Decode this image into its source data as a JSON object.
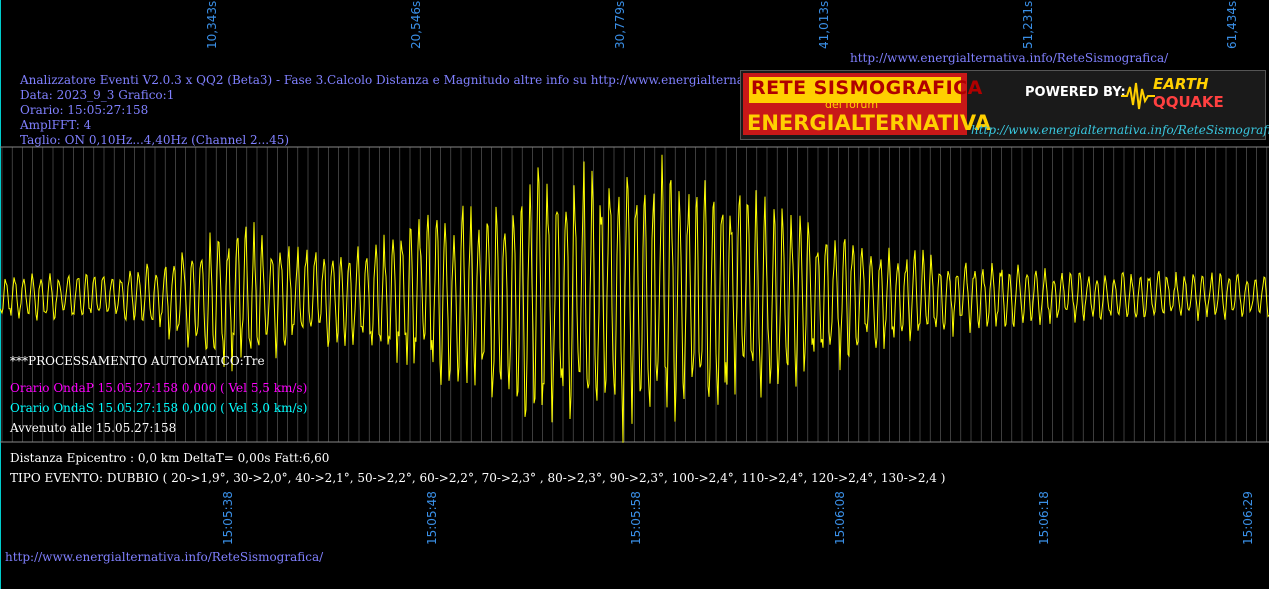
{
  "top_url": "http://www.energialternativa.info/ReteSismografica/",
  "bottom_url": "http://www.energialternativa.info/ReteSismografica/",
  "info": {
    "line1": "Analizzatore Eventi V2.0.3 x QQ2 (Beta3) - Fase 3.Calcolo Distanza e Magnitudo altre info su http://www.energialternativa.info/ReteSism",
    "line2": "Data: 2023_9_3 Grafico:1",
    "line3": "Orario: 15:05:27:158",
    "line4": "AmplFFT: 4",
    "line5": "Taglio: ON 0,10Hz...4,40Hz       (Channel 2...45)"
  },
  "logo": {
    "title": "RETE SISMOGRAFICA",
    "subtitle": "del forum",
    "name": "ENERGIALTERNATIVA",
    "powered": "POWERED BY:",
    "brand_top": "EARTH",
    "brand_bottom": "QQUAKE",
    "url": "http://www.energialternativa.info/ReteSismografica"
  },
  "processing": {
    "title": "***PROCESSAMENTO AUTOMATICO:Tre",
    "onda_p": "Orario OndaP 15.05.27:158  0,000 ( Vel 5,5 km/s)",
    "onda_s": "Orario OndaS 15.05.27:158  0,000 ( Vel 3,0 km/s)",
    "avvenuto": "Avvenuto alle 15.05.27:158",
    "distanza": "Distanza Epicentro : 0,0 km DeltaT= 0,00s  Fatt:6,60",
    "tipo": "TIPO EVENTO: DUBBIO ( 20->1,9°, 30->2,0°, 40->2,1°, 50->2,2°, 60->2,2°, 70->2,3° , 80->2,3°, 90->2,3°, 100->2,4°, 110->2,4°, 120->2,4°, 130->2,4 )"
  },
  "top_ticks": [
    "10,343s",
    "20,546s",
    "30,779s",
    "41,013s",
    "51,231s",
    "61,434s"
  ],
  "bottom_ticks": [
    "15:05:38",
    "15:05:48",
    "15:05:58",
    "15:06:08",
    "15:06:18",
    "15:06:29"
  ],
  "colors": {
    "background": "#000000",
    "signal": "#ffff00",
    "grid": "#666666",
    "info_text": "#8080ff",
    "onda_p": "#ff00ff",
    "onda_s": "#00ffff",
    "tick_text": "#3a8fe6"
  }
}
